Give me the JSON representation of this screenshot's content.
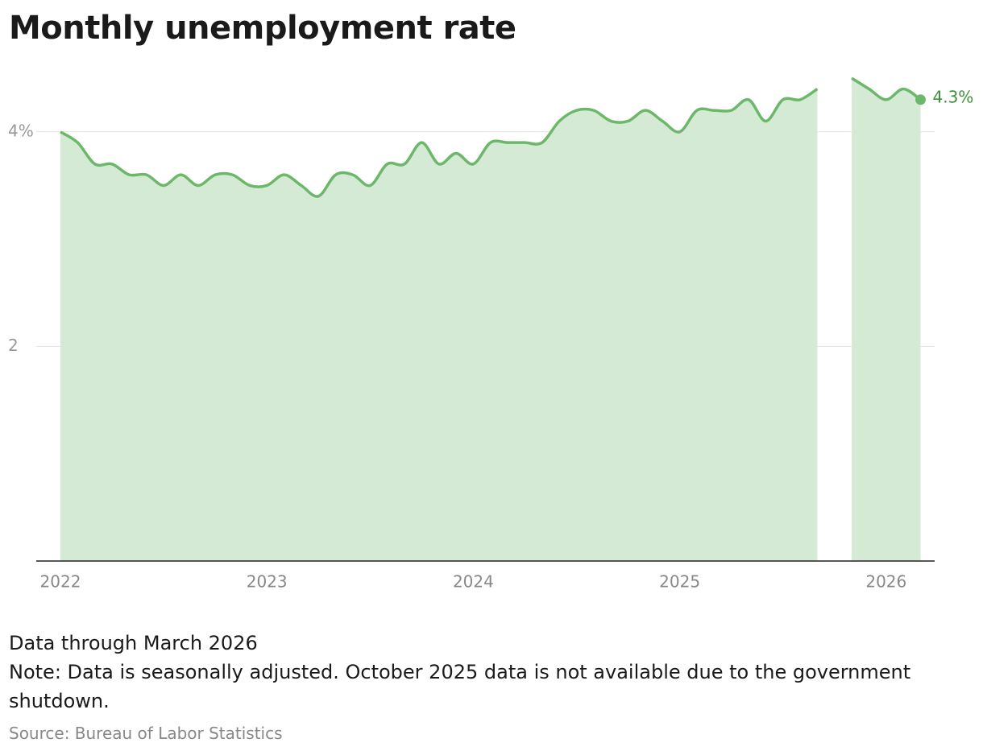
{
  "chart_data": {
    "type": "area",
    "title": "Monthly unemployment rate",
    "categories": [
      "2022",
      null,
      null,
      null,
      null,
      null,
      null,
      null,
      null,
      null,
      null,
      null,
      "2023",
      null,
      null,
      null,
      null,
      null,
      null,
      null,
      null,
      null,
      null,
      null,
      "2024",
      null,
      null,
      null,
      null,
      null,
      null,
      null,
      null,
      null,
      null,
      null,
      "2025",
      null,
      null,
      null,
      null,
      null,
      null,
      null,
      null,
      null,
      null,
      null,
      "2026",
      null,
      null
    ],
    "series": [
      {
        "name": "Unemployment rate",
        "color": "#6cb86a",
        "area_color": "#d5ead4",
        "values": [
          4.0,
          3.9,
          3.7,
          3.7,
          3.6,
          3.6,
          3.5,
          3.6,
          3.5,
          3.6,
          3.6,
          3.5,
          3.5,
          3.6,
          3.5,
          3.4,
          3.6,
          3.6,
          3.5,
          3.7,
          3.7,
          3.9,
          3.7,
          3.8,
          3.7,
          3.9,
          3.9,
          3.9,
          3.9,
          4.1,
          4.2,
          4.2,
          4.1,
          4.1,
          4.2,
          4.1,
          4.0,
          4.2,
          4.2,
          4.2,
          4.3,
          4.1,
          4.3,
          4.3,
          4.4,
          null,
          4.5,
          4.4,
          4.3,
          4.4,
          4.3
        ],
        "value_labels": [
          null,
          null,
          null,
          null,
          null,
          null,
          null,
          null,
          null,
          null,
          null,
          null,
          null,
          null,
          null,
          null,
          null,
          null,
          null,
          null,
          null,
          null,
          null,
          null,
          null,
          null,
          null,
          null,
          null,
          null,
          null,
          null,
          null,
          null,
          null,
          null,
          null,
          null,
          null,
          null,
          null,
          null,
          null,
          null,
          null,
          null,
          null,
          null,
          null,
          null,
          "4.3%"
        ]
      }
    ],
    "ylim": [
      0,
      4.6
    ],
    "yticks": [
      {
        "value": 4,
        "label": "4%"
      },
      2
    ],
    "grid": true,
    "notes": [
      "Data through March 2026",
      "Note: Data is seasonally adjusted. October 2025 data is not available due to the government shutdown."
    ],
    "source": "Source: Bureau of Labor Statistics"
  }
}
